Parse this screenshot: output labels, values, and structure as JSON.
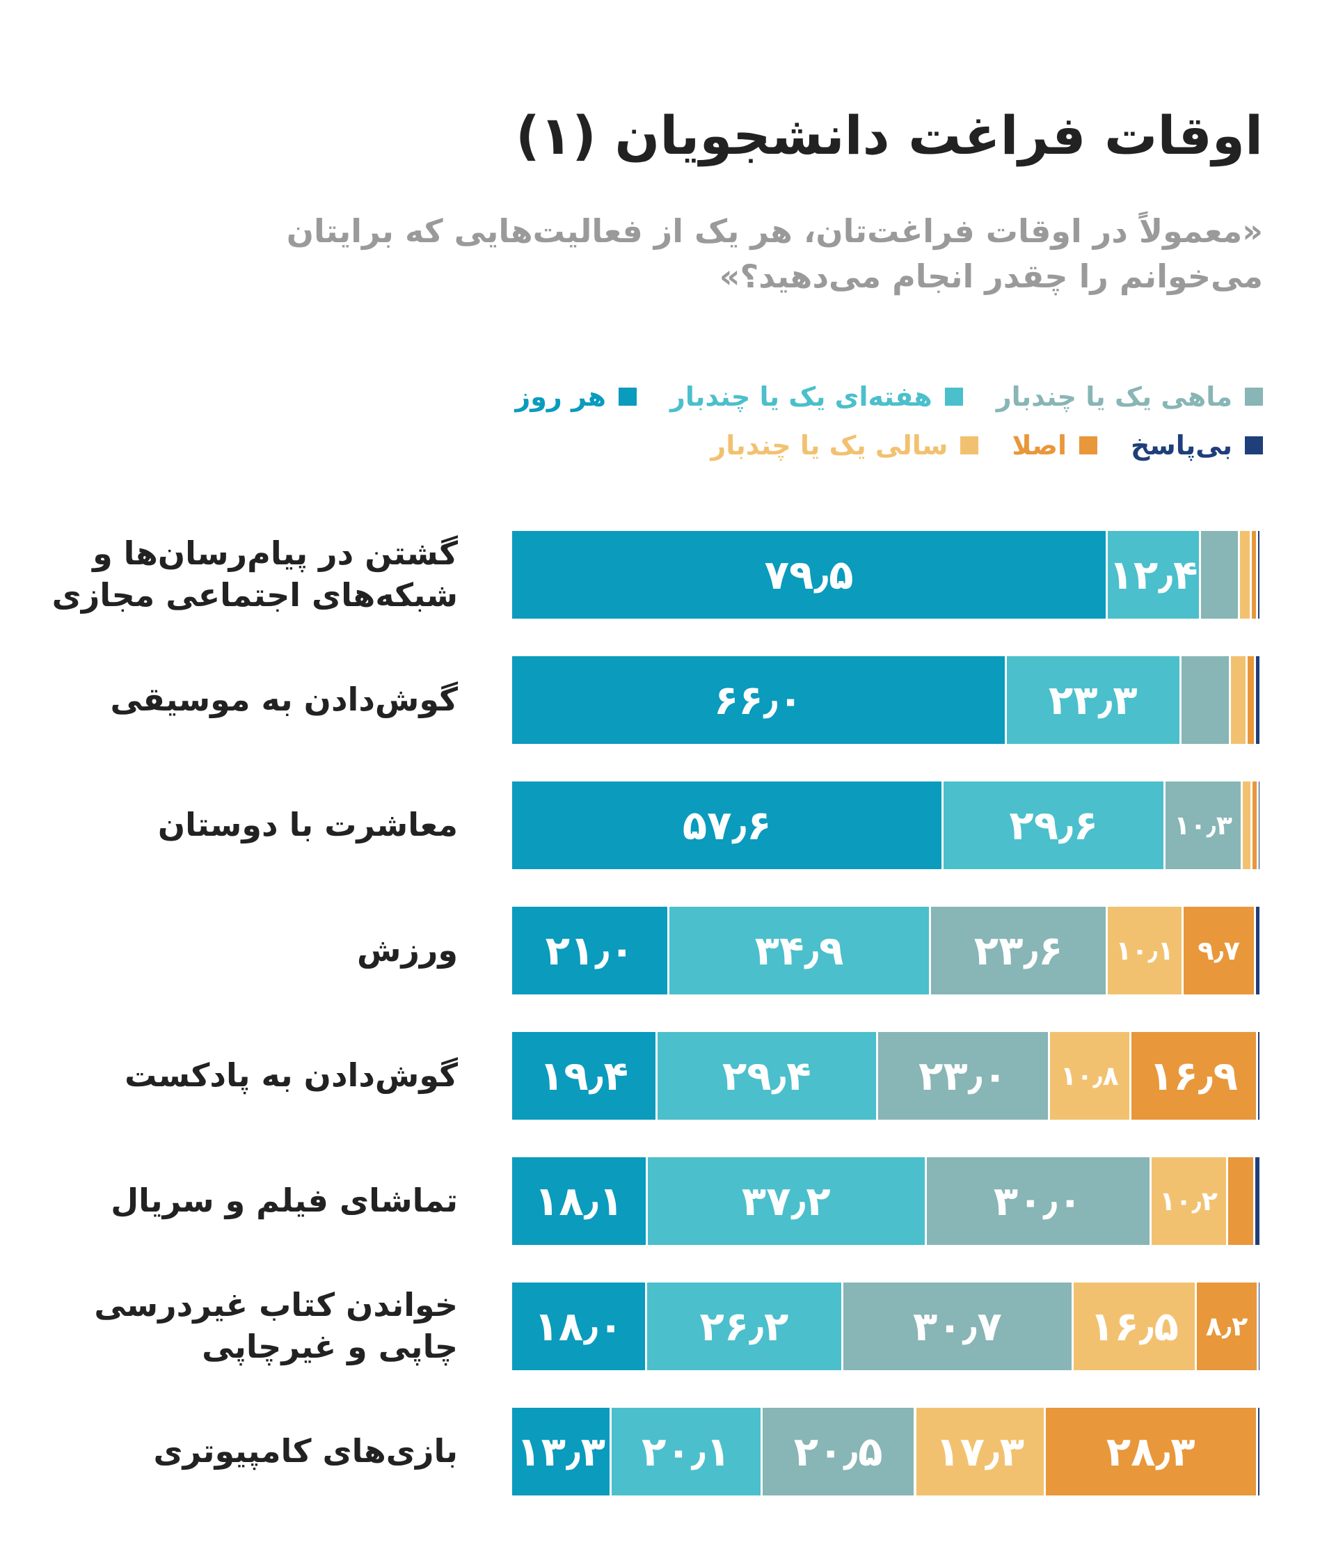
{
  "chart_data": {
    "type": "stacked-bar-horizontal",
    "title": "اوقات فراغت دانشجویان (۱)",
    "subtitle": [
      "«معمولاً در اوقات فراغت‌تان، هر یک از فعالیت‌هایی که برایتان",
      "می‌خوانم را چقدر انجام می‌دهید؟»"
    ],
    "categories": [
      "گشتن در پیام‌رسان‌ها و\nشبکه‌های اجتماعی مجازی",
      "گوش‌دادن به موسیقی",
      "معاشرت با دوستان",
      "ورزش",
      "گوش‌دادن به پادکست",
      "تماشای فیلم و سریال",
      "خواندن کتاب غیردرسی\nچاپی و غیرچاپی",
      "بازی‌های کامپیوتری"
    ],
    "xlim": [
      0,
      100
    ],
    "series": [
      {
        "name": "هر روز",
        "color": "#0a9bbd",
        "values": [
          79.5,
          66.0,
          57.6,
          21.0,
          19.4,
          18.1,
          18.0,
          13.3
        ],
        "value_labels": [
          "۷۹٫۵",
          "۶۶٫۰",
          "۵۷٫۶",
          "۲۱٫۰",
          "۱۹٫۴",
          "۱۸٫۱",
          "۱۸٫۰",
          "۱۳٫۳"
        ]
      },
      {
        "name": "هفته‌ای یک یا چندبار",
        "color": "#4bbfcc",
        "values": [
          12.4,
          23.3,
          29.6,
          34.9,
          29.4,
          37.2,
          26.2,
          20.1
        ],
        "value_labels": [
          "۱۲٫۴",
          "۲۳٫۳",
          "۲۹٫۶",
          "۳۴٫۹",
          "۲۹٫۴",
          "۳۷٫۲",
          "۲۶٫۲",
          "۲۰٫۱"
        ]
      },
      {
        "name": "ماهی یک یا چندبار",
        "color": "#88b5b5",
        "values": [
          5.2,
          6.6,
          10.3,
          23.6,
          23.0,
          30.0,
          30.7,
          20.5
        ],
        "value_labels": [
          null,
          null,
          "۱۰٫۳",
          "۲۳٫۶",
          "۲۳٫۰",
          "۳۰٫۰",
          "۳۰٫۷",
          "۲۰٫۵"
        ]
      },
      {
        "name": "سالی یک یا چندبار",
        "color": "#f2c170",
        "values": [
          1.6,
          2.2,
          1.3,
          10.1,
          10.8,
          10.2,
          16.5,
          17.3
        ],
        "value_labels": [
          null,
          null,
          null,
          "۱۰٫۱",
          "۱۰٫۸",
          "۱۰٫۲",
          "۱۶٫۵",
          "۱۷٫۳"
        ]
      },
      {
        "name": "اصلا",
        "color": "#e8973a",
        "values": [
          0.8,
          1.2,
          0.8,
          9.7,
          16.9,
          3.7,
          8.2,
          28.3
        ],
        "value_labels": [
          null,
          null,
          null,
          "۹٫۷",
          "۱۶٫۹",
          null,
          "۸٫۲",
          "۲۸٫۳"
        ]
      },
      {
        "name": "بی‌پاسخ",
        "color": "#1f3f7a",
        "values": [
          0.5,
          0.7,
          0.4,
          0.7,
          0.5,
          0.8,
          0.4,
          0.5
        ],
        "value_labels": [
          null,
          null,
          null,
          null,
          null,
          null,
          null,
          null
        ]
      }
    ]
  }
}
